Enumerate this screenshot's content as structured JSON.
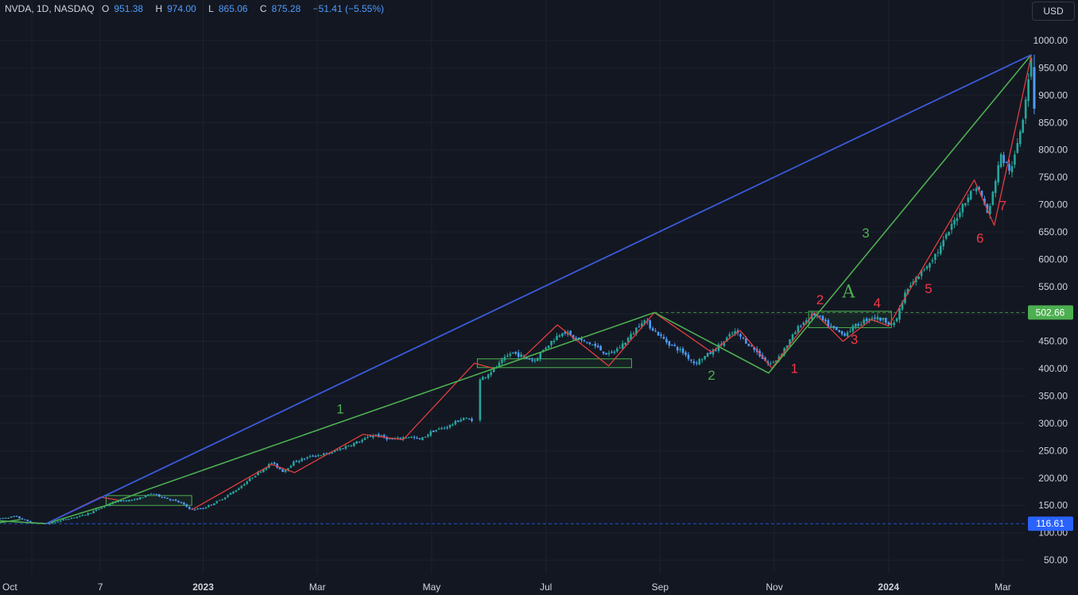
{
  "header": {
    "symbol": "NVDA, 1D, NASDAQ",
    "o_label": "O",
    "o_value": "951.38",
    "h_label": "H",
    "h_value": "974.00",
    "l_label": "L",
    "l_value": "865.06",
    "c_label": "C",
    "c_value": "875.28",
    "change": "−51.41 (−5.55%)"
  },
  "currency_button": "USD",
  "colors": {
    "background": "#131722",
    "grid": "#1e222d",
    "axis_text": "#d1d4dc",
    "up_candle": "#26a69a",
    "down_candle": "#4f9cf9",
    "blue_trend": "#3b5bdb",
    "green_wave": "#4caf50",
    "red_wave": "#e03e3e",
    "green_label": "#4caf50",
    "red_label": "#f23645"
  },
  "chart_data": {
    "type": "candlestick",
    "symbol": "NVDA",
    "interval": "1D",
    "exchange": "NASDAQ",
    "y_axis": {
      "min": 30,
      "max": 1050,
      "ticks": [
        "1000.00",
        "950.00",
        "900.00",
        "850.00",
        "800.00",
        "750.00",
        "700.00",
        "650.00",
        "600.00",
        "550.00",
        "500.00",
        "450.00",
        "400.00",
        "350.00",
        "300.00",
        "250.00",
        "200.00",
        "150.00",
        "100.00",
        "50.00"
      ]
    },
    "x_axis": {
      "ticks": [
        {
          "label": "Oct",
          "x": 0.0,
          "bold": false
        },
        {
          "label": "7",
          "x": 1.2,
          "bold": false
        },
        {
          "label": "2023",
          "x": 3.0,
          "bold": true
        },
        {
          "label": "Mar",
          "x": 5.0,
          "bold": false
        },
        {
          "label": "May",
          "x": 7.0,
          "bold": false
        },
        {
          "label": "Jul",
          "x": 9.0,
          "bold": false
        },
        {
          "label": "Sep",
          "x": 11.0,
          "bold": false
        },
        {
          "label": "Nov",
          "x": 13.0,
          "bold": false
        },
        {
          "label": "2024",
          "x": 15.0,
          "bold": true
        },
        {
          "label": "Mar",
          "x": 17.0,
          "bold": false
        }
      ]
    },
    "price_path": [
      [
        -0.6,
        125
      ],
      [
        -0.3,
        130
      ],
      [
        0.0,
        118
      ],
      [
        0.3,
        116.61
      ],
      [
        0.6,
        125
      ],
      [
        0.9,
        132
      ],
      [
        1.1,
        140
      ],
      [
        1.3,
        150
      ],
      [
        1.5,
        158
      ],
      [
        1.8,
        160
      ],
      [
        2.1,
        172
      ],
      [
        2.3,
        165
      ],
      [
        2.6,
        155
      ],
      [
        2.8,
        142
      ],
      [
        3.0,
        145
      ],
      [
        3.3,
        160
      ],
      [
        3.6,
        180
      ],
      [
        3.9,
        205
      ],
      [
        4.2,
        228
      ],
      [
        4.4,
        212
      ],
      [
        4.6,
        230
      ],
      [
        4.9,
        240
      ],
      [
        5.2,
        245
      ],
      [
        5.5,
        258
      ],
      [
        5.8,
        270
      ],
      [
        6.0,
        280
      ],
      [
        6.3,
        270
      ],
      [
        6.6,
        276
      ],
      [
        6.8,
        270
      ],
      [
        7.0,
        285
      ],
      [
        7.3,
        295
      ],
      [
        7.55,
        310
      ],
      [
        7.7,
        305
      ],
      [
        7.85,
        380
      ],
      [
        8.1,
        400
      ],
      [
        8.4,
        430
      ],
      [
        8.6,
        422
      ],
      [
        8.8,
        415
      ],
      [
        9.0,
        440
      ],
      [
        9.3,
        470
      ],
      [
        9.5,
        455
      ],
      [
        9.8,
        445
      ],
      [
        10.1,
        425
      ],
      [
        10.3,
        440
      ],
      [
        10.5,
        462
      ],
      [
        10.7,
        490
      ],
      [
        10.9,
        470
      ],
      [
        11.1,
        450
      ],
      [
        11.4,
        430
      ],
      [
        11.6,
        410
      ],
      [
        11.9,
        430
      ],
      [
        12.1,
        448
      ],
      [
        12.3,
        468
      ],
      [
        12.5,
        450
      ],
      [
        12.7,
        430
      ],
      [
        12.9,
        408
      ],
      [
        13.0,
        412
      ],
      [
        13.2,
        440
      ],
      [
        13.45,
        480
      ],
      [
        13.7,
        500
      ],
      [
        13.95,
        478
      ],
      [
        14.2,
        462
      ],
      [
        14.45,
        480
      ],
      [
        14.7,
        495
      ],
      [
        14.95,
        488
      ],
      [
        15.1,
        480
      ],
      [
        15.3,
        540
      ],
      [
        15.6,
        580
      ],
      [
        15.9,
        620
      ],
      [
        16.1,
        660
      ],
      [
        16.35,
        710
      ],
      [
        16.55,
        735
      ],
      [
        16.75,
        680
      ],
      [
        16.95,
        790
      ],
      [
        17.15,
        760
      ],
      [
        17.35,
        860
      ],
      [
        17.5,
        974
      ],
      [
        17.55,
        875.28
      ]
    ],
    "wave_lines": {
      "blue_trend": [
        [
          0.25,
          116.61
        ],
        [
          17.5,
          974
        ]
      ],
      "green_waves": [
        [
          [
            -0.6,
            122
          ],
          [
            0.25,
            116.61
          ],
          [
            1.3,
            150
          ],
          [
            2.05,
            180
          ],
          [
            10.9,
            502.66
          ],
          [
            12.9,
            392
          ],
          [
            17.5,
            974
          ]
        ],
        [
          [
            -0.6,
            118
          ],
          [
            -0.2,
            124
          ]
        ]
      ],
      "red_waves": [
        [
          [
            0.25,
            116.61
          ],
          [
            1.2,
            165
          ],
          [
            1.5,
            160
          ]
        ],
        [
          [
            2.8,
            142
          ],
          [
            4.2,
            225
          ],
          [
            4.6,
            210
          ],
          [
            5.8,
            280
          ],
          [
            6.5,
            270
          ],
          [
            7.75,
            410
          ],
          [
            8.1,
            400
          ]
        ],
        [
          [
            8.6,
            420
          ],
          [
            9.2,
            480
          ],
          [
            10.1,
            405
          ],
          [
            10.9,
            502.66
          ],
          [
            11.9,
            430
          ],
          [
            12.4,
            470
          ],
          [
            12.95,
            402
          ]
        ],
        [
          [
            12.95,
            400
          ],
          [
            13.7,
            502.66
          ],
          [
            14.2,
            450
          ],
          [
            14.7,
            490
          ],
          [
            15.0,
            478
          ],
          [
            16.5,
            745
          ],
          [
            16.85,
            662
          ],
          [
            17.5,
            974
          ]
        ]
      ]
    },
    "boxes": [
      {
        "x0": 1.3,
        "x1": 2.8,
        "y0": 150,
        "y1": 168
      },
      {
        "x0": 7.8,
        "x1": 10.5,
        "y0": 402,
        "y1": 418
      },
      {
        "x0": 13.6,
        "x1": 15.05,
        "y0": 475,
        "y1": 505
      }
    ],
    "hlines": [
      {
        "value": 502.66,
        "label": "502.66",
        "color": "#4caf50",
        "from_x": 10.9
      },
      {
        "value": 116.61,
        "label": "116.61",
        "color": "#2962ff",
        "from_x": -0.6
      }
    ],
    "annotations": [
      {
        "text": "1",
        "x": 5.4,
        "y": 318,
        "color": "green"
      },
      {
        "text": "2",
        "x": 11.9,
        "y": 380,
        "color": "green"
      },
      {
        "text": "3",
        "x": 14.6,
        "y": 640,
        "color": "green"
      },
      {
        "text": "A",
        "x": 14.3,
        "y": 530,
        "color": "green",
        "big": true
      },
      {
        "text": "1",
        "x": 13.35,
        "y": 392,
        "color": "red"
      },
      {
        "text": "2",
        "x": 13.8,
        "y": 518,
        "color": "red"
      },
      {
        "text": "3",
        "x": 14.4,
        "y": 445,
        "color": "red"
      },
      {
        "text": "4",
        "x": 14.8,
        "y": 512,
        "color": "red"
      },
      {
        "text": "5",
        "x": 15.7,
        "y": 538,
        "color": "red"
      },
      {
        "text": "6",
        "x": 16.6,
        "y": 630,
        "color": "red"
      },
      {
        "text": "7",
        "x": 17.0,
        "y": 690,
        "color": "red"
      }
    ]
  }
}
